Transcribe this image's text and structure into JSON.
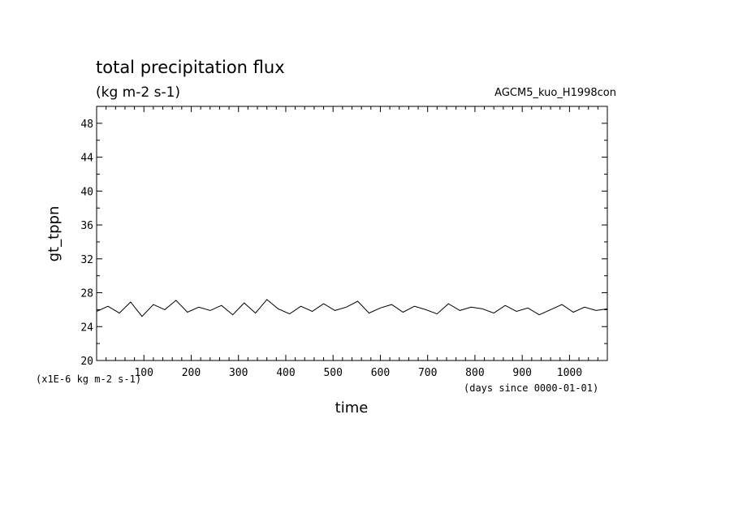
{
  "chart_data": {
    "type": "line",
    "title": "total precipitation flux",
    "subtitle": "(kg m-2 s-1)",
    "run_name": "AGCM5_kuo_H1998con",
    "xlabel": "time",
    "ylabel": "gt_tppn",
    "x_units": "(days since 0000-01-01)",
    "y_units": "(x1E-6 kg m-2 s-1)",
    "xlim": [
      0,
      1080
    ],
    "ylim": [
      20,
      50
    ],
    "x_ticks": [
      "100",
      "200",
      "300",
      "400",
      "500",
      "600",
      "700",
      "800",
      "900",
      "1000"
    ],
    "y_ticks": [
      "20",
      "24",
      "28",
      "32",
      "36",
      "40",
      "44",
      "48"
    ],
    "grid": false,
    "line_color": "#000000",
    "series": [
      {
        "x": [
          0,
          24,
          48,
          72,
          96,
          120,
          144,
          168,
          192,
          216,
          240,
          264,
          288,
          312,
          336,
          360,
          384,
          408,
          432,
          456,
          480,
          504,
          528,
          552,
          576,
          600,
          624,
          648,
          672,
          696,
          720,
          744,
          768,
          792,
          816,
          840,
          864,
          888,
          912,
          936,
          960,
          984,
          1008,
          1032,
          1056,
          1080
        ],
        "values": [
          25.8,
          26.4,
          25.6,
          26.9,
          25.2,
          26.6,
          26.0,
          27.1,
          25.7,
          26.3,
          25.9,
          26.5,
          25.4,
          26.8,
          25.6,
          27.2,
          26.1,
          25.5,
          26.4,
          25.8,
          26.7,
          25.9,
          26.3,
          27.0,
          25.6,
          26.2,
          26.6,
          25.7,
          26.4,
          26.0,
          25.5,
          26.7,
          25.9,
          26.3,
          26.1,
          25.6,
          26.5,
          25.8,
          26.2,
          25.4,
          26.0,
          26.6,
          25.7,
          26.3,
          25.9,
          26.1
        ]
      }
    ]
  }
}
